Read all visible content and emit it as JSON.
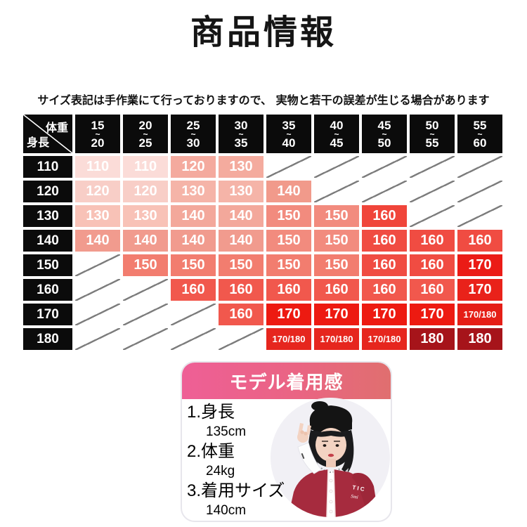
{
  "page": {
    "title": "商品情報",
    "disclaimer": "サイズ表記は手作業にて行っておりますので、 実物と若干の誤差が生じる場合があります"
  },
  "size_chart": {
    "corner": {
      "weight_label": "体重",
      "height_label": "身長"
    },
    "tilde": "~",
    "header_bg": "#0b0b0b",
    "weight_columns": [
      {
        "from": "15",
        "to": "20"
      },
      {
        "from": "20",
        "to": "25"
      },
      {
        "from": "25",
        "to": "30"
      },
      {
        "from": "30",
        "to": "35"
      },
      {
        "from": "35",
        "to": "40"
      },
      {
        "from": "40",
        "to": "45"
      },
      {
        "from": "45",
        "to": "50"
      },
      {
        "from": "50",
        "to": "55"
      },
      {
        "from": "55",
        "to": "60"
      }
    ],
    "rows": [
      {
        "height": "110",
        "cells": [
          {
            "v": "110",
            "c": "#fbdcd8"
          },
          {
            "v": "110",
            "c": "#fbdcd8"
          },
          {
            "v": "120",
            "c": "#f4aa9e"
          },
          {
            "v": "130",
            "c": "#f4ab9e"
          },
          null,
          null,
          null,
          null,
          null
        ]
      },
      {
        "height": "120",
        "cells": [
          {
            "v": "120",
            "c": "#f8cec7"
          },
          {
            "v": "120",
            "c": "#f8cec7"
          },
          {
            "v": "130",
            "c": "#f5b4a8"
          },
          {
            "v": "130",
            "c": "#f5b4a8"
          },
          {
            "v": "140",
            "c": "#f19a8b"
          },
          null,
          null,
          null,
          null
        ]
      },
      {
        "height": "130",
        "cells": [
          {
            "v": "130",
            "c": "#f8c2b7"
          },
          {
            "v": "130",
            "c": "#f8c2b7"
          },
          {
            "v": "140",
            "c": "#f3a89b"
          },
          {
            "v": "140",
            "c": "#f3a89b"
          },
          {
            "v": "150",
            "c": "#f28b7e"
          },
          {
            "v": "150",
            "c": "#f28b7e"
          },
          {
            "v": "160",
            "c": "#f0453a"
          },
          null,
          null
        ]
      },
      {
        "height": "140",
        "cells": [
          {
            "v": "140",
            "c": "#f19b8e"
          },
          {
            "v": "140",
            "c": "#f19b8e"
          },
          {
            "v": "140",
            "c": "#f19b8e"
          },
          {
            "v": "140",
            "c": "#f19b8e"
          },
          {
            "v": "150",
            "c": "#f28b7e"
          },
          {
            "v": "150",
            "c": "#f28b7e"
          },
          {
            "v": "160",
            "c": "#f04c42"
          },
          {
            "v": "160",
            "c": "#f04c42"
          },
          {
            "v": "160",
            "c": "#f04c42"
          }
        ]
      },
      {
        "height": "150",
        "cells": [
          null,
          {
            "v": "150",
            "c": "#f27d6f"
          },
          {
            "v": "150",
            "c": "#f27d6f"
          },
          {
            "v": "150",
            "c": "#f27d6f"
          },
          {
            "v": "150",
            "c": "#f27d6f"
          },
          {
            "v": "150",
            "c": "#f27d6f"
          },
          {
            "v": "160",
            "c": "#f04c42"
          },
          {
            "v": "160",
            "c": "#f04c42"
          },
          {
            "v": "170",
            "c": "#eb1b16"
          }
        ]
      },
      {
        "height": "160",
        "cells": [
          null,
          null,
          {
            "v": "160",
            "c": "#f1584d"
          },
          {
            "v": "160",
            "c": "#f1584d"
          },
          {
            "v": "160",
            "c": "#f1584d"
          },
          {
            "v": "160",
            "c": "#f1584d"
          },
          {
            "v": "160",
            "c": "#f1584d"
          },
          {
            "v": "160",
            "c": "#f1584d"
          },
          {
            "v": "170",
            "c": "#e9221a"
          }
        ]
      },
      {
        "height": "170",
        "cells": [
          null,
          null,
          null,
          {
            "v": "160",
            "c": "#f1584d"
          },
          {
            "v": "170",
            "c": "#ed1a11"
          },
          {
            "v": "170",
            "c": "#ed1a11"
          },
          {
            "v": "170",
            "c": "#ed1a11"
          },
          {
            "v": "170",
            "c": "#ed1a11"
          },
          {
            "v": "170/180",
            "c": "#e51e16",
            "small": true
          }
        ]
      },
      {
        "height": "180",
        "cells": [
          null,
          null,
          null,
          null,
          {
            "v": "170/180",
            "c": "#e6261e",
            "small": true
          },
          {
            "v": "170/180",
            "c": "#e6261e",
            "small": true
          },
          {
            "v": "170/180",
            "c": "#e6261e",
            "small": true
          },
          {
            "v": "180",
            "c": "#a6141a"
          },
          {
            "v": "180",
            "c": "#a6141a"
          }
        ]
      }
    ]
  },
  "model_card": {
    "header": "モデル着用感",
    "header_gradient": [
      "#ee5f96",
      "#e06f6f"
    ],
    "items": [
      {
        "label": "1.身長",
        "value": "135cm"
      },
      {
        "label": "2.体重",
        "value": "24kg"
      },
      {
        "label": "3.着用サイズ",
        "value": "140cm"
      }
    ]
  }
}
